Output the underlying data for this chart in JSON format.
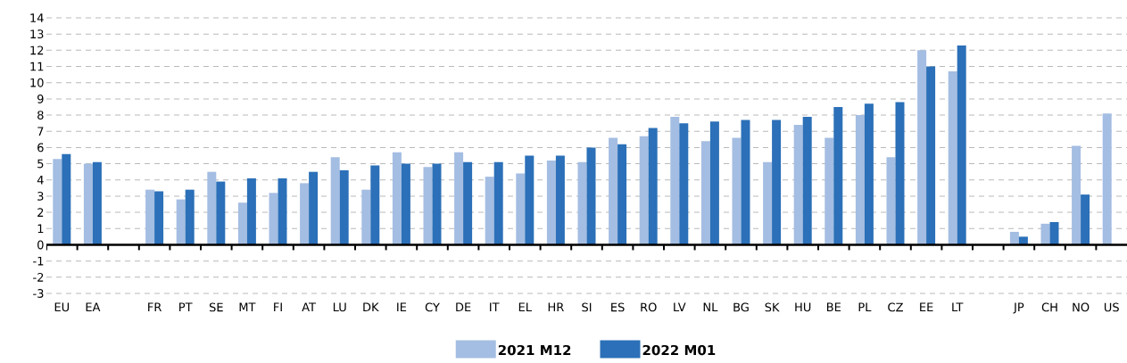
{
  "chart_data": {
    "type": "bar",
    "categories": [
      "EU",
      "EA",
      null,
      "FR",
      "PT",
      "SE",
      "MT",
      "FI",
      "AT",
      "LU",
      "DK",
      "IE",
      "CY",
      "DE",
      "IT",
      "EL",
      "HR",
      "SI",
      "ES",
      "RO",
      "LV",
      "NL",
      "BG",
      "SK",
      "HU",
      "BE",
      "PL",
      "CZ",
      "EE",
      "LT",
      null,
      "JP",
      "CH",
      "NO",
      "US"
    ],
    "series": [
      {
        "name": "2021 M12",
        "color": "#a4bde2",
        "values": [
          5.3,
          5.0,
          null,
          3.4,
          2.8,
          4.5,
          2.6,
          3.2,
          3.8,
          5.4,
          3.4,
          5.7,
          4.8,
          5.7,
          4.2,
          4.4,
          5.2,
          5.1,
          6.6,
          6.7,
          7.9,
          6.4,
          6.6,
          5.1,
          7.4,
          6.6,
          8.0,
          5.4,
          12.0,
          10.7,
          null,
          0.8,
          1.3,
          6.1,
          8.1
        ]
      },
      {
        "name": "2022 M01",
        "color": "#2b70b8",
        "values": [
          5.6,
          5.1,
          null,
          3.3,
          3.4,
          3.9,
          4.1,
          4.1,
          4.5,
          4.6,
          4.9,
          5.0,
          5.0,
          5.1,
          5.1,
          5.5,
          5.5,
          6.0,
          6.2,
          7.2,
          7.5,
          7.6,
          7.7,
          7.7,
          7.9,
          8.5,
          8.7,
          8.8,
          11.0,
          12.3,
          null,
          0.5,
          1.4,
          3.1,
          null
        ]
      }
    ],
    "ylim": [
      -3,
      14
    ],
    "yticks": [
      -3,
      -2,
      -1,
      0,
      1,
      2,
      3,
      4,
      5,
      6,
      7,
      8,
      9,
      10,
      11,
      12,
      13,
      14
    ],
    "grid": "y",
    "legend": "bottom"
  }
}
